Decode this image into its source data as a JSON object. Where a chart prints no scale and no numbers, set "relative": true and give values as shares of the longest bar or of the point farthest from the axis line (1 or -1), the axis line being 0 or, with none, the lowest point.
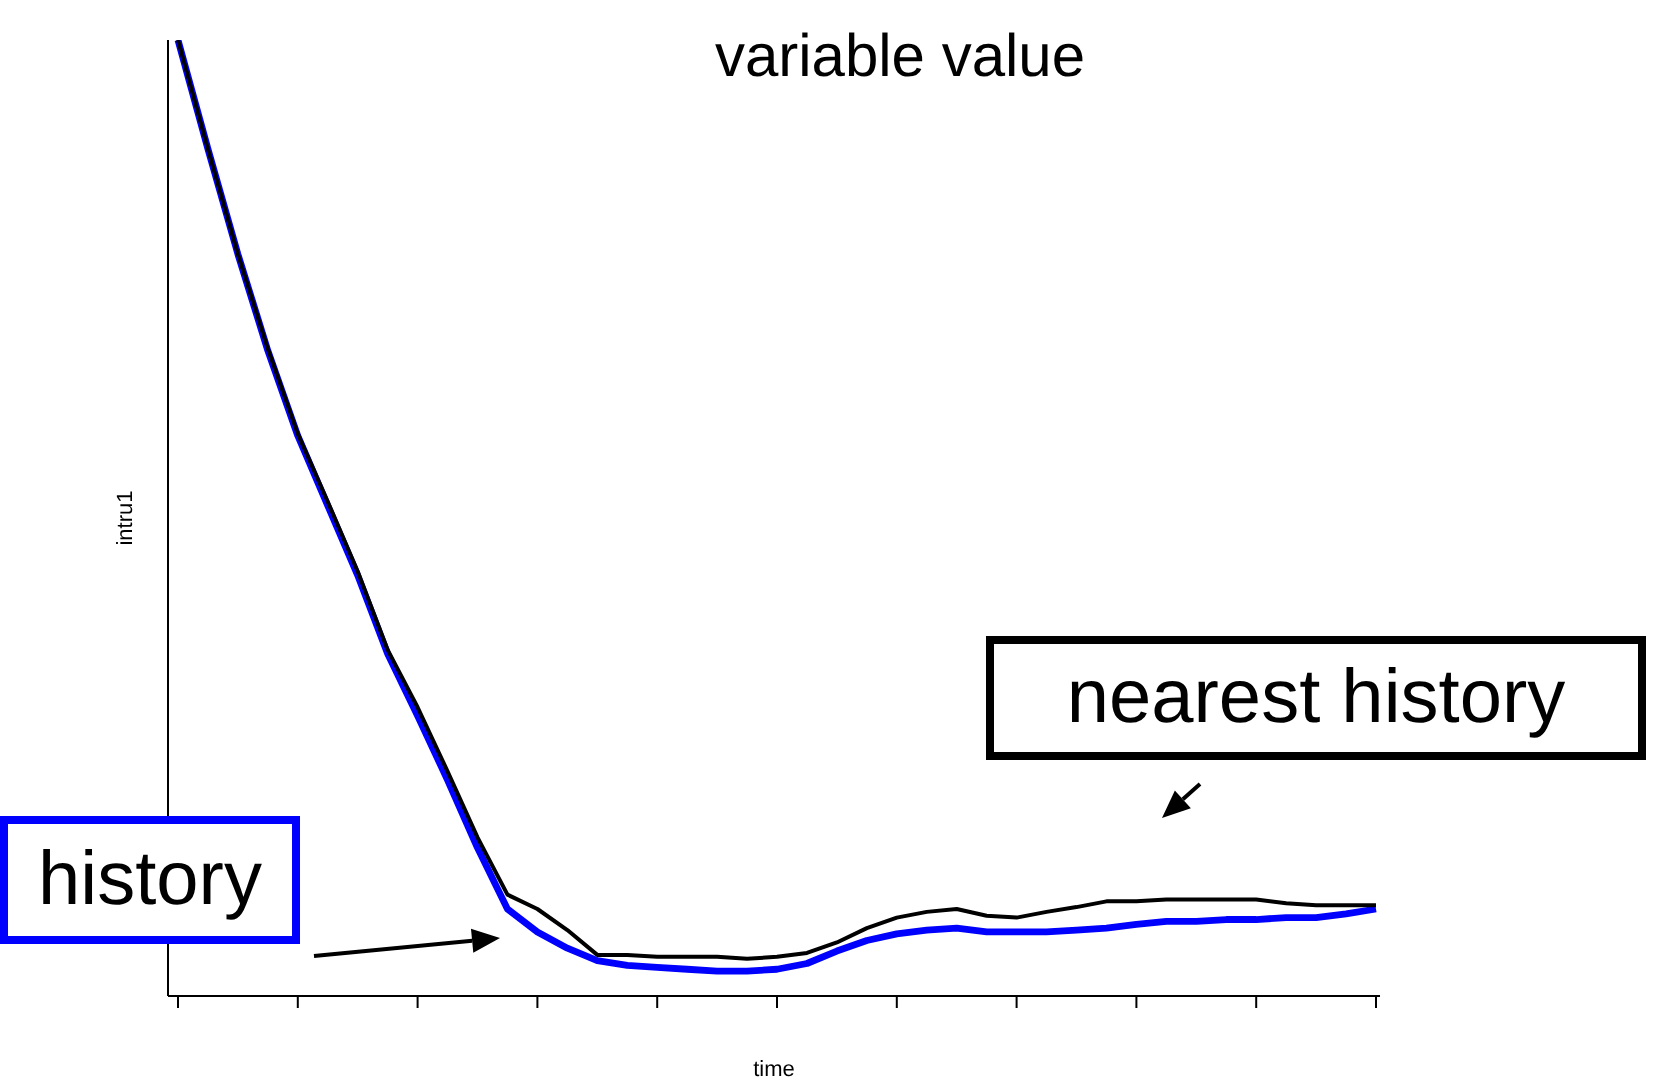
{
  "chart_data": {
    "type": "line",
    "title": "variable value",
    "xlabel": "time",
    "ylabel": "intru1",
    "relative": true,
    "legend": false,
    "grid": false,
    "marker": "none",
    "line_style": "solid",
    "categories": [
      null,
      null,
      null,
      null,
      null,
      null,
      null,
      null,
      null,
      null,
      null,
      null,
      null,
      null,
      null,
      null,
      null,
      null,
      null,
      null,
      null,
      null,
      null,
      null,
      null,
      null,
      null,
      null,
      null,
      null,
      null,
      null,
      null,
      null,
      null,
      null,
      null,
      null,
      null,
      null,
      null
    ],
    "series": [
      {
        "name": "nearest history",
        "color": "#000000",
        "values": [
          1.0,
          0.886,
          0.776,
          0.677,
          0.588,
          0.517,
          0.444,
          0.362,
          0.302,
          0.235,
          0.166,
          0.106,
          0.091,
          0.069,
          0.043,
          0.043,
          0.041,
          0.041,
          0.041,
          0.039,
          0.041,
          0.045,
          0.056,
          0.071,
          0.082,
          0.088,
          0.091,
          0.084,
          0.082,
          0.088,
          0.093,
          0.099,
          0.099,
          0.101,
          0.101,
          0.101,
          0.101,
          0.097,
          0.095,
          0.095,
          0.095
        ]
      },
      {
        "name": "history",
        "color": "#0000ff",
        "values": [
          1.0,
          0.886,
          0.776,
          0.675,
          0.586,
          0.513,
          0.44,
          0.358,
          0.293,
          0.226,
          0.155,
          0.091,
          0.067,
          0.05,
          0.037,
          0.032,
          0.03,
          0.028,
          0.026,
          0.026,
          0.028,
          0.034,
          0.047,
          0.058,
          0.065,
          0.069,
          0.071,
          0.067,
          0.067,
          0.067,
          0.069,
          0.071,
          0.075,
          0.078,
          0.078,
          0.08,
          0.08,
          0.082,
          0.082,
          0.086,
          0.091
        ]
      }
    ]
  }
}
